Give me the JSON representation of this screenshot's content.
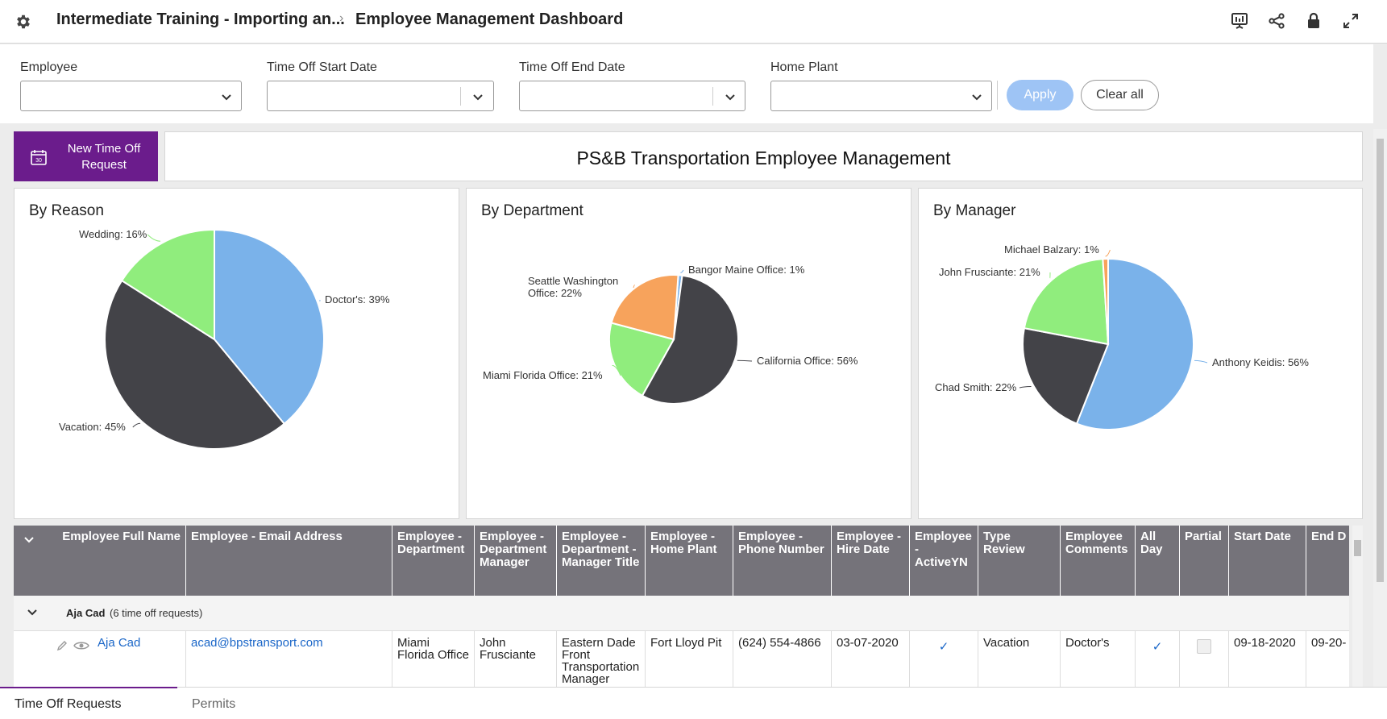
{
  "header": {
    "breadcrumb_parent": "Intermediate Training - Importing an...",
    "breadcrumb_current": "Employee Management Dashboard"
  },
  "filters": {
    "employee_label": "Employee",
    "start_label": "Time Off Start Date",
    "end_label": "Time Off End Date",
    "plant_label": "Home Plant",
    "apply_label": "Apply",
    "clear_label": "Clear all"
  },
  "new_button": {
    "label": "New Time Off Request",
    "calendar_text": "30"
  },
  "dashboard_title": "PS&B Transportation Employee Management",
  "colors": {
    "blue": "#7ab2ea",
    "dark": "#434348",
    "green": "#90ed7d",
    "orange": "#f7a35c",
    "purple": "#6b1c8c"
  },
  "chart_data": [
    {
      "type": "pie",
      "title": "By Reason",
      "slices": [
        {
          "label": "Doctor's: 39%",
          "value": 39,
          "color": "#7ab2ea"
        },
        {
          "label": "Vacation: 45%",
          "value": 45,
          "color": "#434348"
        },
        {
          "label": "Wedding: 16%",
          "value": 16,
          "color": "#90ed7d"
        }
      ]
    },
    {
      "type": "pie",
      "title": "By Department",
      "slices": [
        {
          "label": "California Office: 56%",
          "value": 56,
          "color": "#434348"
        },
        {
          "label": "Miami Florida Office: 21%",
          "value": 21,
          "color": "#90ed7d"
        },
        {
          "label": "Seattle Washington Office: 22%",
          "value": 22,
          "color": "#f7a35c"
        },
        {
          "label": "Bangor Maine Office: 1%",
          "value": 1,
          "color": "#7ab2ea"
        }
      ]
    },
    {
      "type": "pie",
      "title": "By Manager",
      "slices": [
        {
          "label": "Anthony Keidis: 56%",
          "value": 56,
          "color": "#7ab2ea"
        },
        {
          "label": "Chad Smith: 22%",
          "value": 22,
          "color": "#434348"
        },
        {
          "label": "John Frusciante: 21%",
          "value": 21,
          "color": "#90ed7d"
        },
        {
          "label": "Michael Balzary: 1%",
          "value": 1,
          "color": "#f7a35c"
        }
      ]
    }
  ],
  "table": {
    "headers": [
      "Employee Full Name",
      "Employee - Email Address",
      "Employee - Department",
      "Employee - Department Manager",
      "Employee - Department - Manager Title",
      "Employee - Home Plant",
      "Employee - Phone Number",
      "Employee - Hire Date",
      "Employee - ActiveYN",
      "Type Review",
      "Employee Comments",
      "All Day",
      "Partial",
      "Start Date",
      "End D"
    ],
    "group": {
      "name": "Aja Cad",
      "count_text": "(6 time off requests)"
    },
    "rows": [
      {
        "name": "Aja Cad",
        "email": "acad@bpstransport.com",
        "department": "Miami Florida Office",
        "manager": "John Frusciante",
        "manager_title": "Eastern Dade Front Transportation Manager",
        "home_plant": "Fort Lloyd Pit",
        "phone": "(624) 554-4866",
        "hire_date": "03-07-2020",
        "active": "✓",
        "type_review": "Vacation",
        "comments": "Doctor's",
        "all_day": "✓",
        "start_date": "09-18-2020",
        "end_date": "09-20-"
      }
    ]
  },
  "tabs": [
    "Time Off Requests",
    "Permits"
  ]
}
